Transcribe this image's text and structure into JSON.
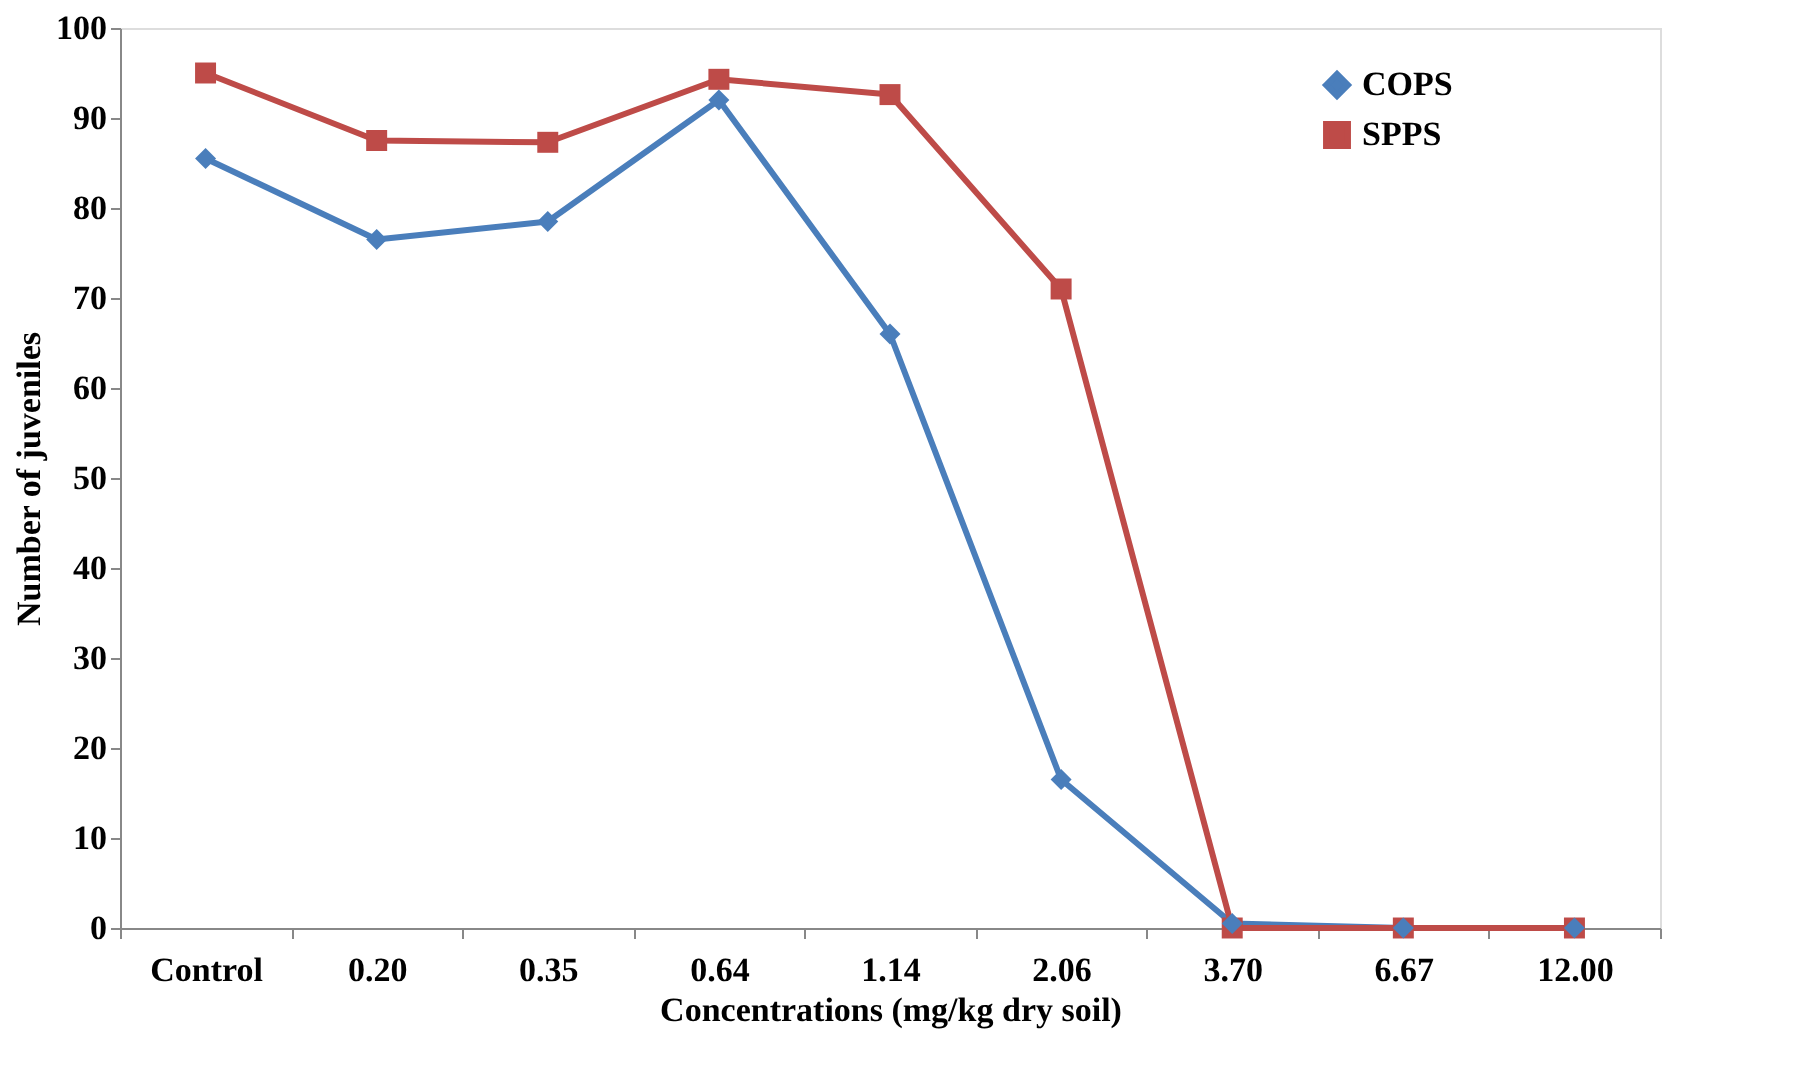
{
  "chart_data": {
    "type": "line",
    "xlabel": "Concentrations (mg/kg dry soil)",
    "ylabel": "Number of juveniles",
    "categories": [
      "Control",
      "0.20",
      "0.35",
      "0.64",
      "1.14",
      "2.06",
      "3.70",
      "6.67",
      "12.00"
    ],
    "series": [
      {
        "name": "COPS",
        "color": "#4a7ebb",
        "marker": "diamond",
        "values": [
          85.5,
          76.5,
          78.5,
          92,
          66,
          16.5,
          0.5,
          0,
          0
        ]
      },
      {
        "name": "SPPS",
        "color": "#be4b48",
        "marker": "square",
        "values": [
          95,
          87.5,
          87.3,
          94.3,
          92.6,
          71,
          0,
          0,
          0
        ]
      }
    ],
    "ylim": [
      0,
      100
    ],
    "yticks": [
      0,
      10,
      20,
      30,
      40,
      50,
      60,
      70,
      80,
      90,
      100
    ],
    "grid": false,
    "legend": "top right",
    "line_style": "solid"
  }
}
